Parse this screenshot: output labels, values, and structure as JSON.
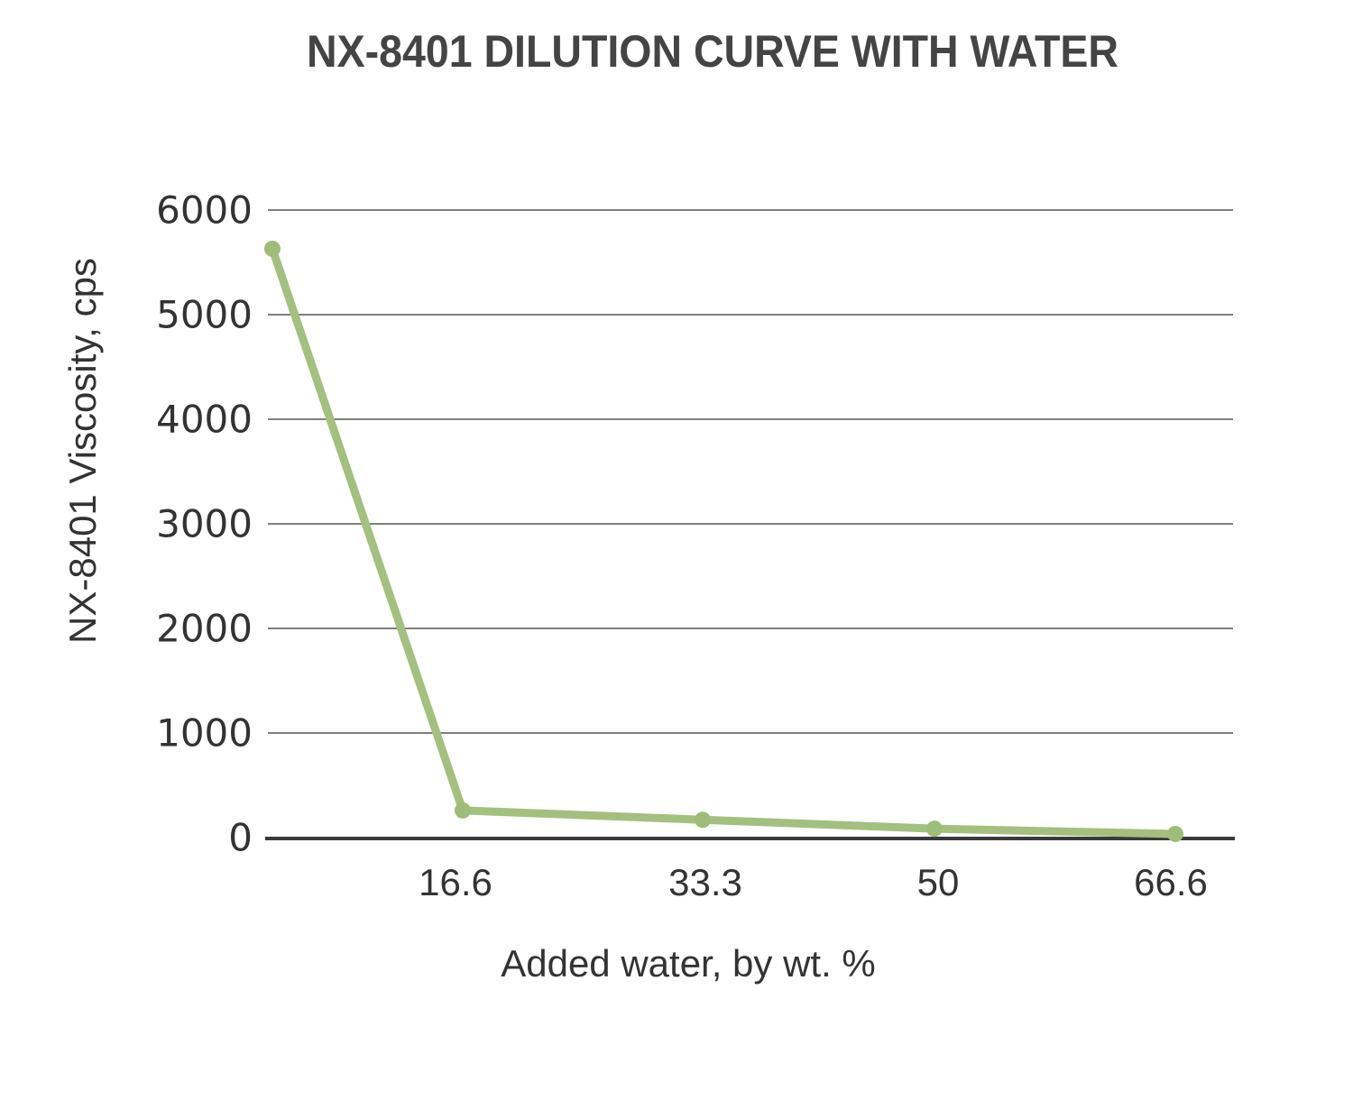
{
  "chart_data": {
    "type": "line",
    "title": "NX-8401 DILUTION CURVE WITH WATER",
    "xlabel": "Added water, by wt. %",
    "ylabel": "NX-8401 Viscosity, cps",
    "x": [
      0,
      16.6,
      33.3,
      50,
      66.6
    ],
    "x_tick_labels": [
      "16.6",
      "33.3",
      "50",
      "66.6"
    ],
    "y_tick_labels": [
      "6000",
      "5000",
      "4000",
      "3000",
      "2000",
      "1000",
      "0"
    ],
    "ylim": [
      0,
      6000
    ],
    "grid": true,
    "legend": null,
    "series": [
      {
        "name": "NX-8401 Viscosity",
        "color": "#a3c07f",
        "values": [
          5630,
          260,
          170,
          85,
          35
        ]
      }
    ]
  },
  "colors": {
    "line": "#a3c07f",
    "grid": "#555555",
    "axis": "#3a3a3a",
    "text": "#333333"
  }
}
